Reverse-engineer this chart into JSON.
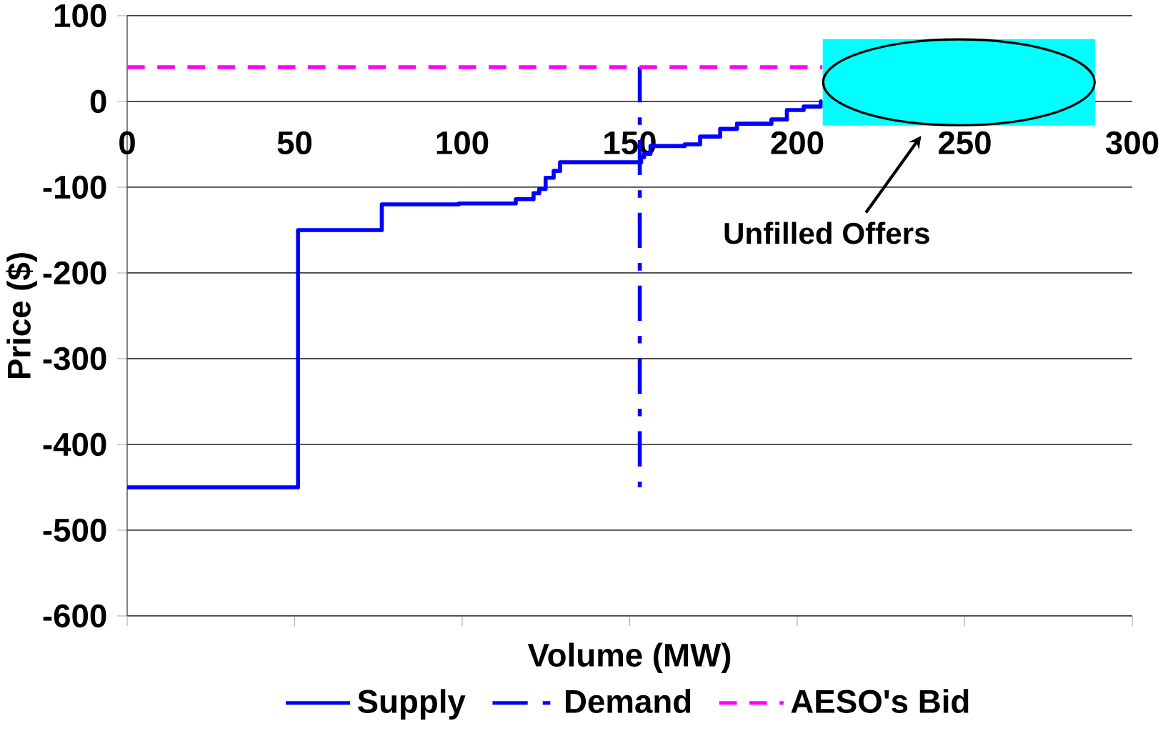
{
  "chart_data": {
    "type": "line",
    "xlabel": "Volume (MW)",
    "ylabel": "Price ($)",
    "xlim": [
      0,
      300
    ],
    "xticks": [
      0,
      50,
      100,
      150,
      200,
      250,
      300
    ],
    "ylim": [
      -600,
      100
    ],
    "yticks": [
      -600,
      -500,
      -400,
      -300,
      -200,
      -100,
      0,
      100
    ],
    "grid": "y",
    "legend": "bottom",
    "marker": "none",
    "series": [
      {
        "name": "Supply",
        "type": "step",
        "color": "#0000ff",
        "line_style": "solid",
        "x": [
          0,
          51,
          76,
          99,
          116,
          121.3,
          123,
          124.9,
          127.3,
          129.2,
          153.4,
          154.3,
          156.2,
          166.4,
          171,
          177,
          182,
          192.3,
          196.9,
          201.9,
          207,
          207.5
        ],
        "values": [
          -450,
          -150,
          -120,
          -119,
          -114,
          -107,
          -102,
          -89,
          -81,
          -71,
          -65,
          -61,
          -52,
          -50,
          -41,
          -32,
          -26,
          -21,
          -10,
          -6,
          0,
          0
        ]
      },
      {
        "name": "Demand",
        "color": "#0000ff",
        "line_style": "dashdot",
        "x": [
          153,
          153
        ],
        "values": [
          40,
          -450
        ]
      },
      {
        "name": "AESO's Bid",
        "color": "#ff00ff",
        "line_style": "dashed",
        "x": [
          0,
          207.5
        ],
        "values": [
          40,
          40
        ]
      }
    ],
    "annotations": [
      "Unfilled Offers"
    ]
  }
}
